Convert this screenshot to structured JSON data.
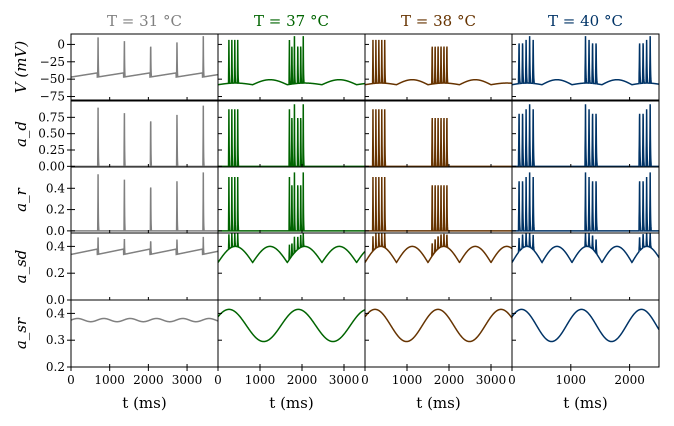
{
  "chart_data": {
    "type": "line",
    "columns": [
      {
        "title": "T = 31 °C",
        "color": "#808080",
        "xlim": [
          0,
          3800
        ],
        "xticks": [
          0,
          1000,
          2000,
          3000
        ],
        "spike_times": [
          700,
          1380,
          2060,
          2740,
          3420
        ],
        "burst": false,
        "period": 3800
      },
      {
        "title": "T = 37 °C",
        "color": "#006400",
        "xlim": [
          0,
          3500
        ],
        "xticks": [
          0,
          1000,
          2000,
          3000
        ],
        "spike_times": [
          260,
          330,
          400,
          470,
          1700,
          1760,
          1820,
          1900,
          1970,
          2030
        ],
        "burst": true,
        "period": 1650
      },
      {
        "title": "T = 38 °C",
        "color": "#663300",
        "xlim": [
          0,
          3500
        ],
        "xticks": [
          0,
          1000,
          2000,
          3000
        ],
        "spike_times": [
          190,
          260,
          330,
          400,
          470,
          1600,
          1670,
          1740,
          1810,
          1880,
          1950
        ],
        "burst": true,
        "period": 1500
      },
      {
        "title": "T = 40 °C",
        "color": "#003366",
        "xlim": [
          0,
          2500
        ],
        "xticks": [
          0,
          1000,
          2000
        ],
        "spike_times": [
          120,
          180,
          240,
          300,
          360,
          1250,
          1310,
          1370,
          1430,
          2170,
          2230,
          2290,
          2350
        ],
        "burst": true,
        "period": 1020
      }
    ],
    "rows": [
      {
        "ylabel": "V (mV)",
        "ylim": [
          -80,
          15
        ],
        "yticks": [
          0,
          -25,
          -50,
          -75
        ],
        "ytick_labels": [
          "0",
          "−25",
          "−50",
          "−75"
        ]
      },
      {
        "ylabel": "a_d",
        "ylim": [
          -0.01,
          1.0
        ],
        "yticks": [
          0.0,
          0.25,
          0.5,
          0.75
        ],
        "ytick_labels": [
          "0.00",
          "0.25",
          "0.50",
          "0.75"
        ]
      },
      {
        "ylabel": "a_r",
        "ylim": [
          -0.02,
          0.6
        ],
        "yticks": [
          0.0,
          0.2,
          0.4
        ],
        "ytick_labels": [
          "0.0",
          "0.2",
          "0.4"
        ]
      },
      {
        "ylabel": "a_sd",
        "ylim": [
          0.0,
          0.5
        ],
        "yticks": [
          0.0,
          0.2,
          0.4
        ],
        "ytick_labels": [
          "0.0",
          "0.2",
          "0.4"
        ]
      },
      {
        "ylabel": "a_sr",
        "ylim": [
          0.2,
          0.45
        ],
        "yticks": [
          0.2,
          0.3,
          0.4
        ],
        "ytick_labels": [
          "0.2",
          "0.3",
          "0.4"
        ]
      }
    ],
    "xlabel": "t (ms)",
    "grid": false
  }
}
